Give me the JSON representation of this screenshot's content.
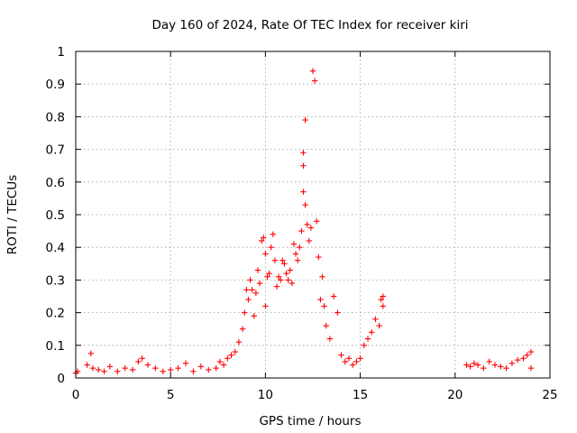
{
  "chart_data": {
    "type": "scatter",
    "title": "Day 160 of 2024, Rate Of TEC Index for receiver kiri",
    "xlabel": "GPS time / hours",
    "ylabel": "ROTI / TECUs",
    "xlim": [
      0,
      25
    ],
    "ylim": [
      0,
      1
    ],
    "x_ticks": [
      0,
      5,
      10,
      15,
      20,
      25
    ],
    "x_tick_labels": [
      "0",
      "5",
      "10",
      "15",
      "20",
      "25"
    ],
    "y_ticks": [
      0,
      0.1,
      0.2,
      0.3,
      0.4,
      0.5,
      0.6,
      0.7,
      0.8,
      0.9,
      1
    ],
    "y_tick_labels": [
      "0",
      "0.1",
      "0.2",
      "0.3",
      "0.4",
      "0.5",
      "0.6",
      "0.7",
      "0.8",
      "0.9",
      "1"
    ],
    "grid": true,
    "marker": "plus",
    "color": "#ff0000",
    "series": [
      {
        "x": [
          0.0,
          0.1,
          0.6,
          0.8,
          0.9,
          1.2,
          1.5,
          1.8,
          2.2,
          2.6,
          3.0,
          3.3,
          3.5,
          3.8,
          4.2,
          4.6,
          5.0,
          5.4,
          5.8,
          6.2,
          6.6,
          7.0,
          7.4,
          7.6,
          7.8,
          8.0,
          8.2,
          8.4,
          8.6,
          8.8,
          8.9,
          9.0,
          9.1,
          9.2,
          9.3,
          9.4,
          9.5,
          9.6,
          9.7,
          9.8,
          9.9,
          10.0,
          10.0,
          10.1,
          10.2,
          10.3,
          10.4,
          10.5,
          10.6,
          10.7,
          10.8,
          10.9,
          11.0,
          11.1,
          11.2,
          11.3,
          11.4,
          11.5,
          11.6,
          11.7,
          11.8,
          11.9,
          12.0,
          12.0,
          12.0,
          12.1,
          12.1,
          12.2,
          12.3,
          12.4,
          12.5,
          12.6,
          12.7,
          12.8,
          12.9,
          13.0,
          13.1,
          13.2,
          13.4,
          13.6,
          13.8,
          14.0,
          14.2,
          14.4,
          14.6,
          14.8,
          15.0,
          15.2,
          15.4,
          15.6,
          15.8,
          16.0,
          16.1,
          16.2,
          16.2,
          20.6,
          20.8,
          21.0,
          21.2,
          21.5,
          21.8,
          22.1,
          22.4,
          22.7,
          23.0,
          23.3,
          23.6,
          23.8,
          24.0,
          24.0
        ],
        "y": [
          0.015,
          0.02,
          0.04,
          0.075,
          0.03,
          0.025,
          0.02,
          0.035,
          0.02,
          0.03,
          0.025,
          0.05,
          0.06,
          0.04,
          0.03,
          0.02,
          0.025,
          0.03,
          0.045,
          0.02,
          0.035,
          0.025,
          0.03,
          0.05,
          0.04,
          0.06,
          0.07,
          0.08,
          0.11,
          0.15,
          0.2,
          0.27,
          0.24,
          0.3,
          0.27,
          0.19,
          0.26,
          0.33,
          0.29,
          0.42,
          0.43,
          0.38,
          0.22,
          0.31,
          0.32,
          0.4,
          0.44,
          0.36,
          0.28,
          0.31,
          0.3,
          0.36,
          0.35,
          0.32,
          0.3,
          0.33,
          0.29,
          0.41,
          0.38,
          0.36,
          0.4,
          0.45,
          0.57,
          0.65,
          0.69,
          0.79,
          0.53,
          0.47,
          0.42,
          0.46,
          0.94,
          0.91,
          0.48,
          0.37,
          0.24,
          0.31,
          0.22,
          0.16,
          0.12,
          0.25,
          0.2,
          0.07,
          0.05,
          0.06,
          0.04,
          0.05,
          0.06,
          0.1,
          0.12,
          0.14,
          0.18,
          0.16,
          0.24,
          0.22,
          0.25,
          0.04,
          0.035,
          0.045,
          0.04,
          0.03,
          0.05,
          0.04,
          0.035,
          0.03,
          0.045,
          0.055,
          0.06,
          0.07,
          0.08,
          0.03
        ]
      }
    ]
  }
}
